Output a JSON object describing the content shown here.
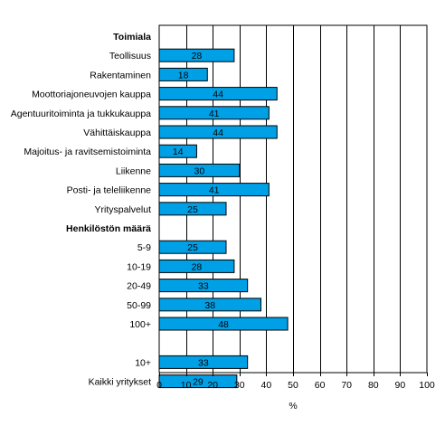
{
  "chart_data": {
    "type": "bar",
    "orientation": "horizontal",
    "xlabel": "%",
    "xlim": [
      0,
      100
    ],
    "xticks": [
      0,
      10,
      20,
      30,
      40,
      50,
      60,
      70,
      80,
      90,
      100
    ],
    "grid": "vertical lines",
    "bar_color": "#00a0e6",
    "groups": [
      {
        "heading": "Toimiala",
        "categories": [
          "Teollisuus",
          "Rakentaminen",
          "Moottoriajoneuvojen kauppa",
          "Agentuuritoiminta ja tukkukauppa",
          "Vähittäiskauppa",
          "Majoitus- ja ravitsemistoiminta",
          "Liikenne",
          "Posti- ja teleliikenne",
          "Yrityspalvelut"
        ],
        "values": [
          28,
          18,
          44,
          41,
          44,
          14,
          30,
          41,
          25
        ]
      },
      {
        "heading": "Henkilöstön määrä",
        "categories": [
          "5-9",
          "10-19",
          "20-49",
          "50-99",
          "100+"
        ],
        "values": [
          25,
          28,
          33,
          38,
          48
        ]
      },
      {
        "heading": "",
        "categories": [
          "10+",
          "Kaikki yritykset"
        ],
        "values": [
          33,
          29
        ]
      }
    ]
  }
}
